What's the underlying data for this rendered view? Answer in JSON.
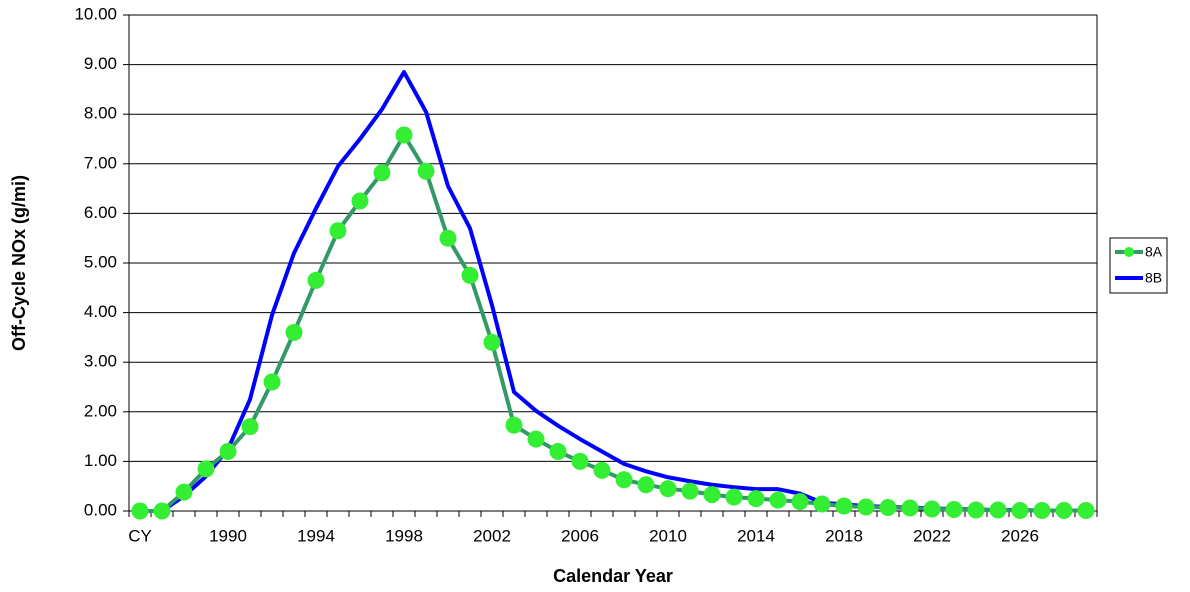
{
  "chart_data": {
    "type": "line",
    "x_label": "Calendar Year",
    "y_label": "Off-Cycle NOx (g/mi)",
    "categories": [
      "CY",
      null,
      null,
      null,
      "1990",
      null,
      null,
      null,
      "1994",
      null,
      null,
      null,
      "1998",
      null,
      null,
      null,
      "2002",
      null,
      null,
      null,
      "2006",
      null,
      null,
      null,
      "2010",
      null,
      null,
      null,
      "2014",
      null,
      null,
      null,
      "2018",
      null,
      null,
      null,
      "2022",
      null,
      null,
      null,
      "2026",
      null,
      null,
      null
    ],
    "series": [
      {
        "name": "8A",
        "color": "#339966",
        "marker_color": "#33ee33",
        "values": [
          0.0,
          0.0,
          0.38,
          0.85,
          1.2,
          1.7,
          2.6,
          3.6,
          4.65,
          5.65,
          6.25,
          6.82,
          7.58,
          6.85,
          5.5,
          4.75,
          3.4,
          1.73,
          1.45,
          1.2,
          1.0,
          0.82,
          0.63,
          0.53,
          0.45,
          0.4,
          0.33,
          0.28,
          0.25,
          0.22,
          0.19,
          0.14,
          0.1,
          0.08,
          0.07,
          0.06,
          0.04,
          0.03,
          0.02,
          0.02,
          0.01,
          0.01,
          0.01,
          0.01
        ]
      },
      {
        "name": "8B",
        "color": "#0000ff",
        "values": [
          0.0,
          0.0,
          0.3,
          0.7,
          1.25,
          2.25,
          3.95,
          5.2,
          6.1,
          6.95,
          7.5,
          8.1,
          8.85,
          8.05,
          6.55,
          5.7,
          4.15,
          2.4,
          2.02,
          1.72,
          1.45,
          1.2,
          0.95,
          0.8,
          0.68,
          0.6,
          0.53,
          0.48,
          0.44,
          0.44,
          0.35,
          0.17,
          0.13,
          0.1,
          0.08,
          0.07,
          0.05,
          0.04,
          0.03,
          0.02,
          0.02,
          0.01,
          0.01,
          0.01
        ]
      }
    ],
    "ylim": [
      0,
      10
    ],
    "yticks": [
      {
        "value": 0,
        "label": "0.00"
      },
      {
        "value": 1,
        "label": "1.00"
      },
      {
        "value": 2,
        "label": "2.00"
      },
      {
        "value": 3,
        "label": "3.00"
      },
      {
        "value": 4,
        "label": "4.00"
      },
      {
        "value": 5,
        "label": "5.00"
      },
      {
        "value": 6,
        "label": "6.00"
      },
      {
        "value": 7,
        "label": "7.00"
      },
      {
        "value": 8,
        "label": "8.00"
      },
      {
        "value": 9,
        "label": "9.00"
      },
      {
        "value": 10,
        "label": "10.00"
      }
    ],
    "grid": true,
    "legend": "right"
  }
}
